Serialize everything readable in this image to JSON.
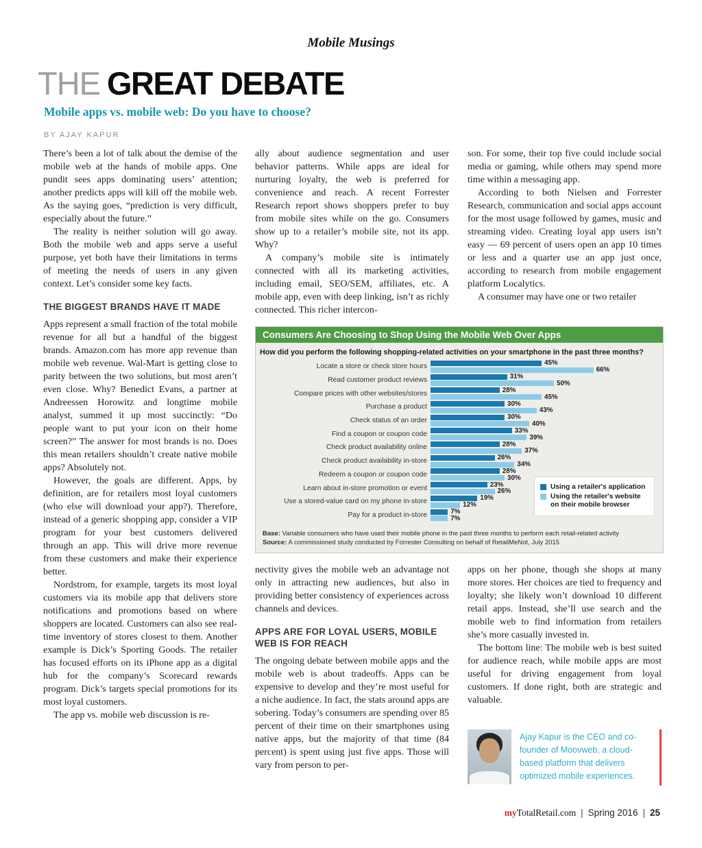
{
  "masthead": "Mobile Musings",
  "headline": {
    "light": "THE",
    "bold": "GREAT DEBATE"
  },
  "subtitle": "Mobile apps vs. mobile web: Do you have to choose?",
  "byline": "BY AJAY KAPUR",
  "columns": [
    {
      "id": "col1",
      "blocks": [
        {
          "t": "p",
          "indent": false,
          "text": "There’s been a lot of talk about the demise of the mobile web at the hands of mobile apps. One pundit sees apps dominating users’ attention; another predicts apps will kill off the mobile web. As the saying goes, “prediction is very difficult, especially about the future.”"
        },
        {
          "t": "p",
          "indent": true,
          "text": "The reality is neither solution will go away. Both the mobile web and apps serve a useful purpose, yet both have their limitations in terms of meeting the needs of users in any given context. Let’s consider some key facts."
        },
        {
          "t": "h",
          "text": "THE BIGGEST BRANDS HAVE IT MADE"
        },
        {
          "t": "p",
          "indent": false,
          "text": "Apps represent a small fraction of the total mobile revenue for all but a handful of the biggest brands. Amazon.com has more app revenue than mobile web revenue. Wal-Mart is getting close to parity between the two solutions, but most aren’t even close. Why? Benedict Evans, a partner at Andreessen Horowitz and longtime mobile analyst, summed it up most succinctly: “Do people want to put your icon on their home screen?” The answer for most brands is no. Does this mean retailers shouldn’t create native mobile apps? Absolutely not."
        },
        {
          "t": "p",
          "indent": true,
          "text": "However, the goals are different. Apps, by definition, are for retailers most loyal customers (who else will download your app?). Therefore, instead of a generic shopping app, consider a VIP program for your best customers delivered through an app. This will drive more revenue from these customers and make their experience better."
        },
        {
          "t": "p",
          "indent": true,
          "text": "Nordstrom, for example, targets its most loyal customers via its mobile app that delivers store notifications and promotions based on where shoppers are located. Customers can also see real-time inventory of stores closest to them. Another example is Dick’s Sporting Goods. The retailer has focused efforts on its iPhone app as a digital hub for the company’s Scorecard rewards program. Dick’s targets special promotions for its most loyal customers."
        },
        {
          "t": "p",
          "indent": true,
          "text": "The app vs. mobile web discussion is re-"
        }
      ]
    },
    {
      "id": "col2top",
      "blocks": [
        {
          "t": "p",
          "indent": false,
          "text": "ally about audience segmentation and user behavior patterns. While apps are ideal for nurturing loyalty, the web is preferred for convenience and reach. A recent Forrester Research report shows shoppers prefer to buy from mobile sites while on the go. Consumers show up to a retailer’s mobile site, not its app. Why?"
        },
        {
          "t": "p",
          "indent": true,
          "text": "A company’s mobile site is intimately connected with all its marketing activities, including email, SEO/SEM, affiliates, etc. A mobile app, even with deep linking, isn’t as richly connected. This richer intercon-"
        }
      ]
    },
    {
      "id": "col3top",
      "blocks": [
        {
          "t": "p",
          "indent": false,
          "text": "son. For some, their top five could include social media or gaming, while others may spend more time within a messaging app."
        },
        {
          "t": "p",
          "indent": true,
          "text": "According to both Nielsen and Forrester Research, communication and social apps account for the most usage followed by games, music and streaming video. Creating loyal app users isn’t easy — 69 percent of users open an app 10 times or less and a quarter use an app just once, according to research from mobile engagement platform Localytics."
        },
        {
          "t": "p",
          "indent": true,
          "text": "A consumer may have one or two retailer"
        }
      ]
    },
    {
      "id": "col2bottom",
      "blocks": [
        {
          "t": "p",
          "indent": false,
          "text": "nectivity gives the mobile web an advantage not only in attracting new audiences, but also in providing better consistency of experiences across channels and devices."
        },
        {
          "t": "h",
          "text": "APPS ARE FOR LOYAL USERS, MOBILE WEB IS FOR REACH"
        },
        {
          "t": "p",
          "indent": false,
          "text": "The ongoing debate between mobile apps and the mobile web is about tradeoffs. Apps can be expensive to develop and they’re most useful for a niche audience. In fact, the stats around apps are sobering. Today’s consumers are spending over 85 percent of their time on their smartphones using native apps, but the majority of that time (84 percent) is spent using just five apps. Those will vary from person to per-"
        }
      ]
    },
    {
      "id": "col3bottom",
      "blocks": [
        {
          "t": "p",
          "indent": false,
          "text": "apps on her phone, though she shops at many more stores. Her choices are tied to frequency and loyalty; she likely won’t download 10 different retail apps. Instead, she’ll use search and the mobile web to find information from retailers she’s more casually invested in."
        },
        {
          "t": "p",
          "indent": true,
          "text": "The bottom line: The mobile web is best suited for audience reach, while mobile apps are most useful for driving engagement from loyal customers. If done right, both are strategic and valuable."
        }
      ]
    }
  ],
  "chart_data": {
    "type": "bar",
    "orientation": "horizontal",
    "title": "Consumers Are Choosing to Shop Using the Mobile Web Over Apps",
    "question": "How did you perform the following shopping-related activities on your smartphone in the past three months?",
    "categories": [
      "Locate a store or check store hours",
      "Read customer product reviews",
      "Compare prices with other websites/stores",
      "Purchase a product",
      "Check status of an order",
      "Find a coupon or coupon code",
      "Check product availability online",
      "Check product availability in-store",
      "Redeem a coupon or coupon code",
      "Learn about in-store promotion or event",
      "Use a stored-value card on my phone in-store",
      "Pay for a product in-store"
    ],
    "series": [
      {
        "name": "Using a retailer's application",
        "color": "#1b78ae",
        "values": [
          45,
          31,
          28,
          30,
          30,
          33,
          28,
          26,
          28,
          23,
          19,
          7
        ]
      },
      {
        "name": "Using the retailer's website on their mobile browser",
        "color": "#8bcbe8",
        "values": [
          66,
          50,
          45,
          43,
          40,
          39,
          37,
          34,
          30,
          26,
          12,
          7
        ]
      }
    ],
    "xlim": [
      0,
      70
    ],
    "grid": false,
    "legend_position": "right",
    "header_color": "#4e9c45",
    "base_label": "Base:",
    "base_text": " Variable consumers who have used their mobile phone in the past three months to perform each retail-related activity",
    "source_label": "Source:",
    "source_text": " A commissioned study conducted by Forrester Consulting on behalf of RetailMeNot, July 2015"
  },
  "bio": {
    "text": "Ajay Kapur is the CEO and co-founder of Moovweb, a cloud-based platform that delivers optimized mobile experiences."
  },
  "footer": {
    "brand_prefix": "my",
    "brand_rest": "TotalRetail.com",
    "separator": "|",
    "issue": "Spring 2016",
    "page": "25"
  }
}
